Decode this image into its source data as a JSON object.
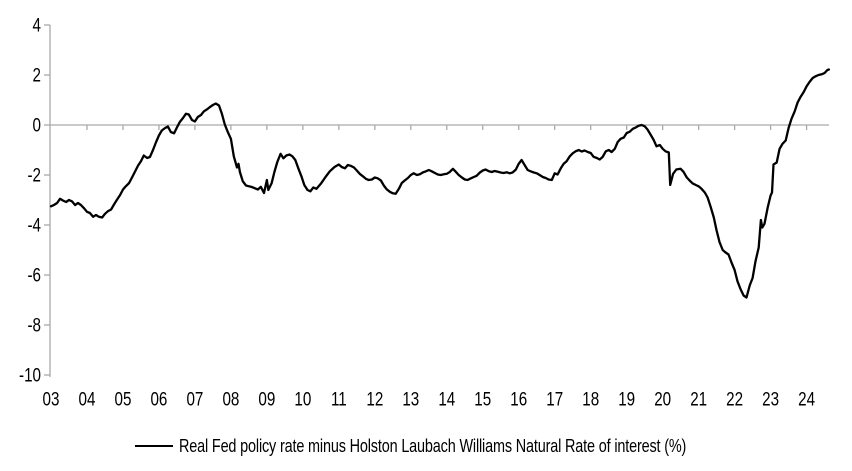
{
  "chart_data": {
    "type": "line",
    "title": "",
    "xlabel": "",
    "ylabel": "",
    "legend": "Real Fed policy rate minus Holston Laubach Williams Natural Rate of interest (%)",
    "legend_position": "bottom-center",
    "grid": false,
    "axis_color": "#a9a9a9",
    "line_color": "#000000",
    "ylim": [
      -10,
      4
    ],
    "y_ticks": [
      4,
      2,
      0,
      -2,
      -4,
      -6,
      -8,
      -10
    ],
    "x_tick_labels": [
      "03",
      "04",
      "05",
      "06",
      "07",
      "08",
      "09",
      "10",
      "11",
      "12",
      "13",
      "14",
      "15",
      "16",
      "17",
      "18",
      "19",
      "20",
      "21",
      "22",
      "23",
      "24"
    ],
    "x_tick_years": [
      2003,
      2004,
      2005,
      2006,
      2007,
      2008,
      2009,
      2010,
      2011,
      2012,
      2013,
      2014,
      2015,
      2016,
      2017,
      2018,
      2019,
      2020,
      2021,
      2022,
      2023,
      2024
    ],
    "xlim": [
      2003,
      2024.65
    ],
    "zero_axis_line": true,
    "series": [
      {
        "name": "Real Fed policy rate minus Holston Laubach Williams Natural Rate of interest (%)",
        "points": [
          [
            2003.0,
            -3.25
          ],
          [
            2003.08,
            -3.2
          ],
          [
            2003.17,
            -3.12
          ],
          [
            2003.25,
            -2.95
          ],
          [
            2003.33,
            -3.02
          ],
          [
            2003.42,
            -3.08
          ],
          [
            2003.5,
            -3.0
          ],
          [
            2003.58,
            -3.05
          ],
          [
            2003.67,
            -3.2
          ],
          [
            2003.75,
            -3.12
          ],
          [
            2003.83,
            -3.2
          ],
          [
            2003.92,
            -3.33
          ],
          [
            2004.0,
            -3.47
          ],
          [
            2004.08,
            -3.52
          ],
          [
            2004.17,
            -3.67
          ],
          [
            2004.25,
            -3.6
          ],
          [
            2004.33,
            -3.67
          ],
          [
            2004.42,
            -3.7
          ],
          [
            2004.5,
            -3.55
          ],
          [
            2004.58,
            -3.45
          ],
          [
            2004.67,
            -3.38
          ],
          [
            2004.75,
            -3.18
          ],
          [
            2004.83,
            -3.0
          ],
          [
            2004.92,
            -2.8
          ],
          [
            2005.0,
            -2.58
          ],
          [
            2005.08,
            -2.45
          ],
          [
            2005.17,
            -2.32
          ],
          [
            2005.25,
            -2.1
          ],
          [
            2005.33,
            -1.88
          ],
          [
            2005.42,
            -1.62
          ],
          [
            2005.5,
            -1.45
          ],
          [
            2005.58,
            -1.22
          ],
          [
            2005.67,
            -1.32
          ],
          [
            2005.75,
            -1.28
          ],
          [
            2005.83,
            -1.02
          ],
          [
            2005.92,
            -0.68
          ],
          [
            2006.0,
            -0.42
          ],
          [
            2006.08,
            -0.22
          ],
          [
            2006.17,
            -0.12
          ],
          [
            2006.25,
            -0.06
          ],
          [
            2006.33,
            -0.28
          ],
          [
            2006.42,
            -0.33
          ],
          [
            2006.5,
            -0.1
          ],
          [
            2006.58,
            0.12
          ],
          [
            2006.67,
            0.28
          ],
          [
            2006.75,
            0.45
          ],
          [
            2006.83,
            0.42
          ],
          [
            2006.92,
            0.2
          ],
          [
            2007.0,
            0.14
          ],
          [
            2007.08,
            0.32
          ],
          [
            2007.17,
            0.4
          ],
          [
            2007.25,
            0.55
          ],
          [
            2007.33,
            0.62
          ],
          [
            2007.42,
            0.72
          ],
          [
            2007.5,
            0.8
          ],
          [
            2007.58,
            0.86
          ],
          [
            2007.67,
            0.78
          ],
          [
            2007.75,
            0.45
          ],
          [
            2007.83,
            0.02
          ],
          [
            2007.92,
            -0.3
          ],
          [
            2008.0,
            -0.55
          ],
          [
            2008.08,
            -1.25
          ],
          [
            2008.17,
            -1.7
          ],
          [
            2008.21,
            -1.55
          ],
          [
            2008.25,
            -1.88
          ],
          [
            2008.33,
            -2.25
          ],
          [
            2008.42,
            -2.42
          ],
          [
            2008.5,
            -2.45
          ],
          [
            2008.58,
            -2.48
          ],
          [
            2008.67,
            -2.53
          ],
          [
            2008.75,
            -2.58
          ],
          [
            2008.83,
            -2.47
          ],
          [
            2008.92,
            -2.72
          ],
          [
            2009.0,
            -2.2
          ],
          [
            2009.04,
            -2.6
          ],
          [
            2009.13,
            -2.33
          ],
          [
            2009.21,
            -1.88
          ],
          [
            2009.29,
            -1.48
          ],
          [
            2009.38,
            -1.15
          ],
          [
            2009.46,
            -1.33
          ],
          [
            2009.54,
            -1.22
          ],
          [
            2009.63,
            -1.18
          ],
          [
            2009.71,
            -1.25
          ],
          [
            2009.79,
            -1.4
          ],
          [
            2009.88,
            -1.75
          ],
          [
            2009.96,
            -2.05
          ],
          [
            2010.04,
            -2.4
          ],
          [
            2010.13,
            -2.6
          ],
          [
            2010.21,
            -2.65
          ],
          [
            2010.29,
            -2.5
          ],
          [
            2010.38,
            -2.55
          ],
          [
            2010.5,
            -2.35
          ],
          [
            2010.63,
            -2.08
          ],
          [
            2010.75,
            -1.85
          ],
          [
            2010.88,
            -1.68
          ],
          [
            2011.0,
            -1.58
          ],
          [
            2011.08,
            -1.68
          ],
          [
            2011.17,
            -1.73
          ],
          [
            2011.25,
            -1.6
          ],
          [
            2011.33,
            -1.63
          ],
          [
            2011.42,
            -1.7
          ],
          [
            2011.5,
            -1.82
          ],
          [
            2011.58,
            -1.95
          ],
          [
            2011.67,
            -2.05
          ],
          [
            2011.75,
            -2.15
          ],
          [
            2011.83,
            -2.2
          ],
          [
            2011.92,
            -2.18
          ],
          [
            2012.0,
            -2.1
          ],
          [
            2012.08,
            -2.13
          ],
          [
            2012.17,
            -2.22
          ],
          [
            2012.25,
            -2.42
          ],
          [
            2012.33,
            -2.57
          ],
          [
            2012.42,
            -2.67
          ],
          [
            2012.5,
            -2.73
          ],
          [
            2012.58,
            -2.75
          ],
          [
            2012.67,
            -2.55
          ],
          [
            2012.75,
            -2.32
          ],
          [
            2012.83,
            -2.22
          ],
          [
            2012.92,
            -2.12
          ],
          [
            2013.0,
            -2.0
          ],
          [
            2013.08,
            -1.93
          ],
          [
            2013.17,
            -2.0
          ],
          [
            2013.25,
            -1.97
          ],
          [
            2013.33,
            -1.9
          ],
          [
            2013.42,
            -1.85
          ],
          [
            2013.5,
            -1.8
          ],
          [
            2013.58,
            -1.85
          ],
          [
            2013.67,
            -1.92
          ],
          [
            2013.75,
            -1.98
          ],
          [
            2013.83,
            -2.0
          ],
          [
            2013.92,
            -1.97
          ],
          [
            2014.0,
            -1.95
          ],
          [
            2014.08,
            -1.88
          ],
          [
            2014.17,
            -1.75
          ],
          [
            2014.25,
            -1.87
          ],
          [
            2014.33,
            -2.0
          ],
          [
            2014.42,
            -2.1
          ],
          [
            2014.5,
            -2.18
          ],
          [
            2014.58,
            -2.2
          ],
          [
            2014.67,
            -2.13
          ],
          [
            2014.75,
            -2.08
          ],
          [
            2014.83,
            -2.03
          ],
          [
            2014.92,
            -1.9
          ],
          [
            2015.0,
            -1.82
          ],
          [
            2015.08,
            -1.78
          ],
          [
            2015.17,
            -1.85
          ],
          [
            2015.25,
            -1.88
          ],
          [
            2015.33,
            -1.84
          ],
          [
            2015.42,
            -1.87
          ],
          [
            2015.5,
            -1.9
          ],
          [
            2015.58,
            -1.92
          ],
          [
            2015.67,
            -1.89
          ],
          [
            2015.75,
            -1.93
          ],
          [
            2015.83,
            -1.9
          ],
          [
            2015.92,
            -1.78
          ],
          [
            2016.0,
            -1.55
          ],
          [
            2016.08,
            -1.4
          ],
          [
            2016.17,
            -1.62
          ],
          [
            2016.25,
            -1.8
          ],
          [
            2016.33,
            -1.85
          ],
          [
            2016.42,
            -1.9
          ],
          [
            2016.5,
            -1.93
          ],
          [
            2016.58,
            -2.0
          ],
          [
            2016.67,
            -2.08
          ],
          [
            2016.75,
            -2.12
          ],
          [
            2016.83,
            -2.18
          ],
          [
            2016.92,
            -2.2
          ],
          [
            2017.0,
            -1.93
          ],
          [
            2017.08,
            -1.98
          ],
          [
            2017.17,
            -1.73
          ],
          [
            2017.25,
            -1.55
          ],
          [
            2017.33,
            -1.45
          ],
          [
            2017.42,
            -1.25
          ],
          [
            2017.5,
            -1.13
          ],
          [
            2017.58,
            -1.05
          ],
          [
            2017.67,
            -1.0
          ],
          [
            2017.75,
            -1.06
          ],
          [
            2017.83,
            -1.02
          ],
          [
            2017.92,
            -1.08
          ],
          [
            2018.0,
            -1.12
          ],
          [
            2018.08,
            -1.27
          ],
          [
            2018.17,
            -1.32
          ],
          [
            2018.25,
            -1.38
          ],
          [
            2018.33,
            -1.28
          ],
          [
            2018.42,
            -1.05
          ],
          [
            2018.5,
            -1.0
          ],
          [
            2018.58,
            -1.08
          ],
          [
            2018.67,
            -0.95
          ],
          [
            2018.75,
            -0.68
          ],
          [
            2018.83,
            -0.55
          ],
          [
            2018.92,
            -0.5
          ],
          [
            2019.0,
            -0.32
          ],
          [
            2019.08,
            -0.27
          ],
          [
            2019.17,
            -0.15
          ],
          [
            2019.25,
            -0.1
          ],
          [
            2019.33,
            -0.03
          ],
          [
            2019.42,
            0.0
          ],
          [
            2019.5,
            -0.05
          ],
          [
            2019.58,
            -0.18
          ],
          [
            2019.67,
            -0.4
          ],
          [
            2019.75,
            -0.6
          ],
          [
            2019.83,
            -0.85
          ],
          [
            2019.92,
            -0.8
          ],
          [
            2020.0,
            -0.95
          ],
          [
            2020.08,
            -1.05
          ],
          [
            2020.17,
            -1.1
          ],
          [
            2020.21,
            -2.4
          ],
          [
            2020.29,
            -1.95
          ],
          [
            2020.38,
            -1.78
          ],
          [
            2020.5,
            -1.75
          ],
          [
            2020.58,
            -1.87
          ],
          [
            2020.67,
            -2.1
          ],
          [
            2020.75,
            -2.22
          ],
          [
            2020.83,
            -2.33
          ],
          [
            2020.92,
            -2.4
          ],
          [
            2021.0,
            -2.45
          ],
          [
            2021.08,
            -2.55
          ],
          [
            2021.17,
            -2.7
          ],
          [
            2021.25,
            -2.9
          ],
          [
            2021.33,
            -3.25
          ],
          [
            2021.42,
            -3.7
          ],
          [
            2021.5,
            -4.22
          ],
          [
            2021.58,
            -4.68
          ],
          [
            2021.67,
            -5.0
          ],
          [
            2021.75,
            -5.1
          ],
          [
            2021.83,
            -5.18
          ],
          [
            2021.92,
            -5.52
          ],
          [
            2022.0,
            -5.8
          ],
          [
            2022.08,
            -6.25
          ],
          [
            2022.17,
            -6.58
          ],
          [
            2022.25,
            -6.82
          ],
          [
            2022.33,
            -6.9
          ],
          [
            2022.42,
            -6.42
          ],
          [
            2022.5,
            -6.12
          ],
          [
            2022.58,
            -5.45
          ],
          [
            2022.67,
            -4.9
          ],
          [
            2022.73,
            -3.8
          ],
          [
            2022.77,
            -4.1
          ],
          [
            2022.83,
            -3.95
          ],
          [
            2022.92,
            -3.3
          ],
          [
            2023.0,
            -2.82
          ],
          [
            2023.04,
            -2.7
          ],
          [
            2023.08,
            -1.58
          ],
          [
            2023.17,
            -1.5
          ],
          [
            2023.25,
            -0.95
          ],
          [
            2023.33,
            -0.75
          ],
          [
            2023.42,
            -0.62
          ],
          [
            2023.5,
            -0.12
          ],
          [
            2023.58,
            0.25
          ],
          [
            2023.67,
            0.55
          ],
          [
            2023.75,
            0.9
          ],
          [
            2023.83,
            1.12
          ],
          [
            2023.92,
            1.32
          ],
          [
            2024.0,
            1.55
          ],
          [
            2024.08,
            1.72
          ],
          [
            2024.17,
            1.88
          ],
          [
            2024.25,
            1.95
          ],
          [
            2024.33,
            2.0
          ],
          [
            2024.42,
            2.03
          ],
          [
            2024.5,
            2.08
          ],
          [
            2024.58,
            2.2
          ],
          [
            2024.62,
            2.22
          ]
        ]
      }
    ]
  }
}
